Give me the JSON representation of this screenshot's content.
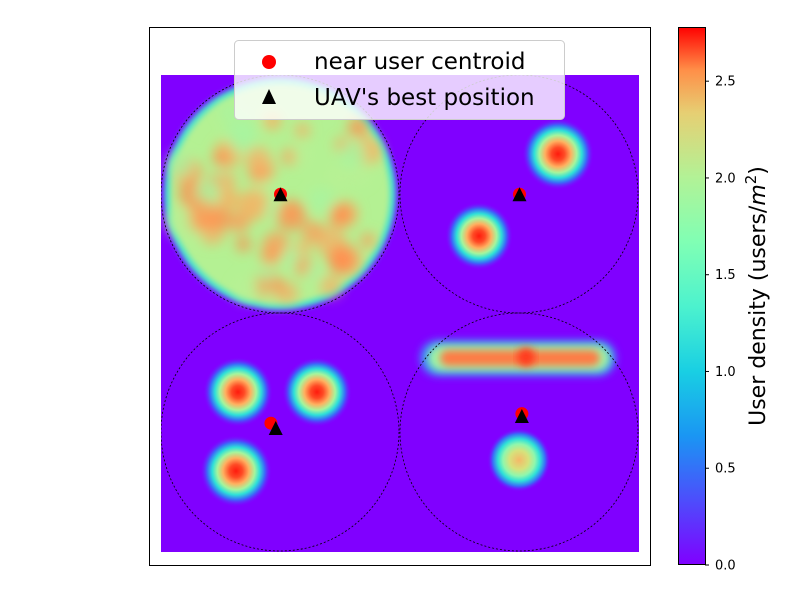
{
  "chart_data": {
    "type": "heatmap",
    "title": "",
    "xlabel": "",
    "ylabel": "",
    "xlim": [
      0,
      1000
    ],
    "ylim": [
      0,
      1000
    ],
    "x_ticks_visible": false,
    "y_ticks_visible": false,
    "colormap": "rainbow",
    "colorbar": {
      "label_prefix": "User density (users/",
      "label_unit_base": "m",
      "label_unit_exponent": "2",
      "label_suffix": ")",
      "range": [
        0,
        2.78
      ],
      "ticks": [
        0.0,
        0.5,
        1.0,
        1.5,
        2.0,
        2.5
      ],
      "tick_labels": [
        "0.0",
        "0.5",
        "1.0",
        "1.5",
        "2.0",
        "2.5"
      ]
    },
    "regions": [
      {
        "name": "top-left",
        "center": [
          250,
          750
        ],
        "radius": 250,
        "pattern": "uniform disk",
        "density": 2.0
      },
      {
        "name": "top-right",
        "center": [
          750,
          750
        ],
        "radius": 250,
        "pattern": "two hotspots",
        "hotspots": [
          {
            "x": 830,
            "y": 835,
            "peak": 2.75
          },
          {
            "x": 665,
            "y": 660,
            "peak": 2.6
          }
        ]
      },
      {
        "name": "bottom-left",
        "center": [
          250,
          250
        ],
        "radius": 250,
        "pattern": "three hotspots",
        "hotspots": [
          {
            "x": 165,
            "y": 335,
            "peak": 2.7
          },
          {
            "x": 330,
            "y": 335,
            "peak": 2.6
          },
          {
            "x": 160,
            "y": 170,
            "peak": 2.75
          }
        ]
      },
      {
        "name": "bottom-right",
        "center": [
          750,
          250
        ],
        "radius": 250,
        "pattern": "band and hotspot",
        "band": {
          "x_from": 560,
          "x_to": 950,
          "y": 405,
          "density": 2.2
        },
        "hotspots": [
          {
            "x": 750,
            "y": 195,
            "peak": 2.0
          }
        ]
      }
    ],
    "series": [
      {
        "name": "near user centroid",
        "marker": "circle",
        "color": "#ff0000",
        "points": [
          [
            250,
            750
          ],
          [
            750,
            750
          ],
          [
            230,
            270
          ],
          [
            755,
            290
          ]
        ]
      },
      {
        "name": "UAV's best position",
        "marker": "triangle",
        "color": "#000000",
        "points": [
          [
            250,
            750
          ],
          [
            750,
            750
          ],
          [
            240,
            260
          ],
          [
            755,
            285
          ]
        ]
      }
    ],
    "legend_position": "upper center"
  }
}
